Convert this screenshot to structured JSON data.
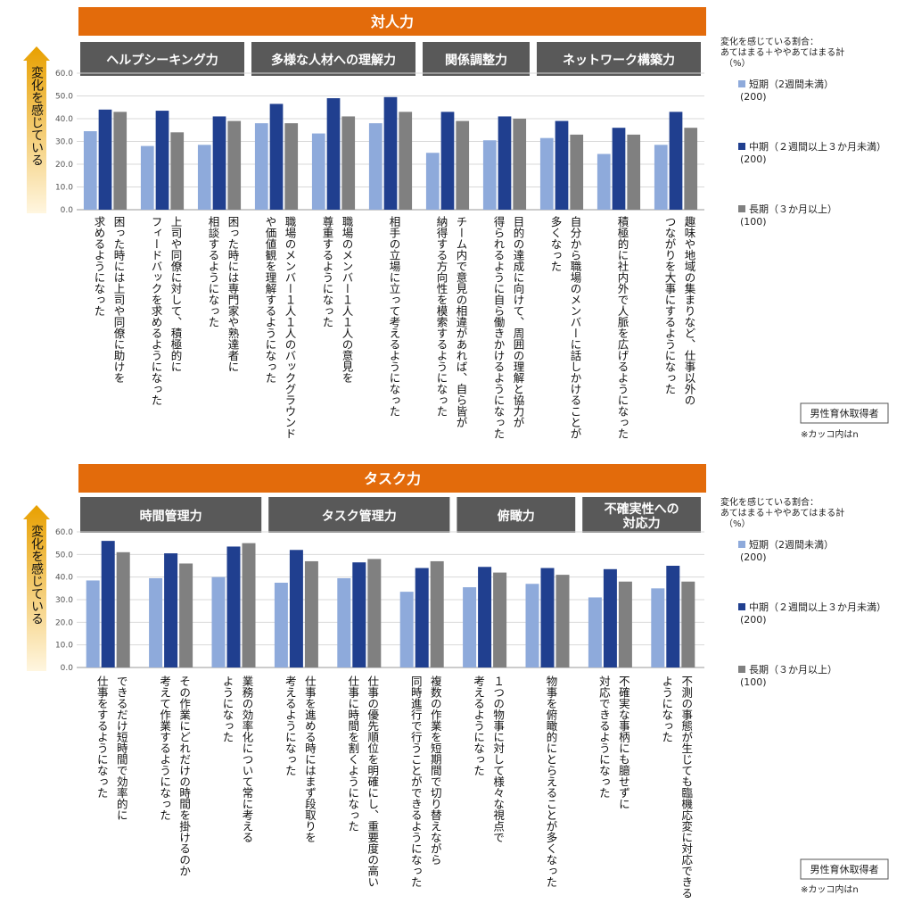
{
  "colors": {
    "short": "#8eaadb",
    "mid": "#203f8f",
    "long": "#808080",
    "banner": "#e36b0b",
    "category_bar": "#595959",
    "arrow_top": "#e8a000",
    "arrow_bottom": "#fff6e0",
    "grid": "#d9d9d9"
  },
  "legend": {
    "heading_line1": "変化を感じている割合：",
    "heading_line2": "あてはまる＋ややあてはまる計",
    "unit": "（%）",
    "short_label": "短期（2週間未満）",
    "short_n": "(200)",
    "mid_label": "中期（２週間以上３か月未満）",
    "mid_n": "(200)",
    "long_label": "長期（３か月以上）",
    "long_n": "(100)"
  },
  "note_box": "男性育休取得者",
  "note_n": "※カッコ内はn",
  "yaxis_label": "変化を感じている",
  "chart_data": [
    {
      "type": "bar",
      "title": "対人力",
      "ylim": [
        0,
        60
      ],
      "yticks": [
        "0.0",
        "10.0",
        "20.0",
        "30.0",
        "40.0",
        "50.0",
        "60.0"
      ],
      "groups": [
        {
          "label": "ヘルプシーキング力",
          "count": 3
        },
        {
          "label": "多様な人材への理解力",
          "count": 3
        },
        {
          "label": "関係調整力",
          "count": 2
        },
        {
          "label": "ネットワーク構築力",
          "count": 3
        }
      ],
      "categories": [
        "困った時には上司や同僚に助けを|求めるようになった",
        "上司や同僚に対して、積極的に|フィードバックを求めるようになった",
        "困った時には専門家や熟達者に|相談するようになった",
        "職場のメンバー１人１人のバックグラウンド|や価値観を理解するようになった",
        "職場のメンバー１人１人の意見を|尊重するようになった",
        "相手の立場に立って考えるようになった",
        "チーム内で意見の相違があれば、自ら皆が|納得する方向性を模索するようになった",
        "目的の達成に向けて、周囲の理解と協力が|得られるように自ら働きかけるようになった",
        "自分から職場のメンバーに話しかけることが|多くなった",
        "積極的に社内外で人脈を広げるようになった",
        "趣味や地域の集まりなど、仕事以外の|つながりを大事にするようになった"
      ],
      "series": [
        {
          "name": "短期（2週間未満）",
          "key": "short",
          "values": [
            34.5,
            28.0,
            28.5,
            38.0,
            33.5,
            38.0,
            25.0,
            30.5,
            31.5,
            24.5,
            28.5
          ]
        },
        {
          "name": "中期（２週間以上３か月未満）",
          "key": "mid",
          "values": [
            44.0,
            43.5,
            41.0,
            46.5,
            49.0,
            49.5,
            43.0,
            41.0,
            39.0,
            36.0,
            43.0
          ]
        },
        {
          "name": "長期（３か月以上）",
          "key": "long",
          "values": [
            43.0,
            34.0,
            39.0,
            38.0,
            41.0,
            43.0,
            39.0,
            40.0,
            33.0,
            33.0,
            36.0
          ]
        }
      ]
    },
    {
      "type": "bar",
      "title": "タスク力",
      "ylim": [
        0,
        60
      ],
      "yticks": [
        "0.0",
        "10.0",
        "20.0",
        "30.0",
        "40.0",
        "50.0",
        "60.0"
      ],
      "groups": [
        {
          "label": "時間管理力",
          "count": 3
        },
        {
          "label": "タスク管理力",
          "count": 3
        },
        {
          "label": "俯瞰力",
          "count": 2
        },
        {
          "label": "不確実性への|対応力",
          "count": 2
        }
      ],
      "categories": [
        "できるだけ短時間で効率的に|仕事をするようになった",
        "その作業にどれだけの時間を掛けるのか|考えて作業するようになった",
        "業務の効率化について常に考える|ようになった",
        "仕事を進める時にはまず段取りを|考えるようになった",
        "仕事の優先順位を明確にし、重要度の高い|仕事に時間を割くようになった",
        "複数の作業を短期間で切り替えながら|同時進行で行うことができるようになった",
        "１つの物事に対して様々な視点で|考えるようになった",
        "物事を俯瞰的にとらえることが多くなった",
        "不確実な事柄にも臆せずに|対応できるようになった",
        "不測の事態が生じても臨機応変に対応できる|ようになった"
      ],
      "series": [
        {
          "name": "短期（2週間未満）",
          "key": "short",
          "values": [
            38.5,
            39.5,
            40.0,
            37.5,
            39.5,
            33.5,
            35.5,
            37.0,
            31.0,
            35.0
          ]
        },
        {
          "name": "中期（２週間以上３か月未満）",
          "key": "mid",
          "values": [
            56.0,
            50.5,
            53.5,
            52.0,
            46.5,
            44.0,
            44.5,
            44.0,
            43.5,
            45.0
          ]
        },
        {
          "name": "長期（３か月以上）",
          "key": "long",
          "values": [
            51.0,
            46.0,
            55.0,
            47.0,
            48.0,
            47.0,
            42.0,
            41.0,
            38.0,
            38.0
          ]
        }
      ]
    }
  ]
}
